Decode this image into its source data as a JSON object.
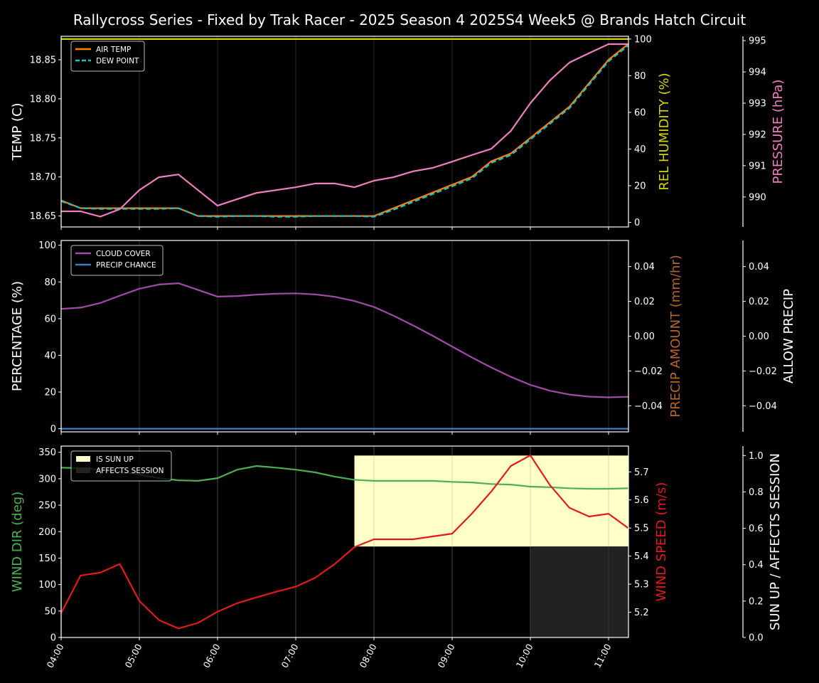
{
  "chart_data": [
    {
      "type": "line",
      "title": "Rallycross Series - Fixed by Trak Racer - 2025 Season 4 2025S4 Week5 @ Brands Hatch Circuit",
      "x": [
        "04:00",
        "04:15",
        "04:30",
        "04:45",
        "05:00",
        "05:15",
        "05:30",
        "05:45",
        "06:00",
        "06:15",
        "06:30",
        "06:45",
        "07:00",
        "07:15",
        "07:30",
        "07:45",
        "08:00",
        "08:15",
        "08:30",
        "08:45",
        "09:00",
        "09:15",
        "09:30",
        "09:45",
        "10:00",
        "10:15",
        "10:30",
        "10:45",
        "11:00",
        "11:15"
      ],
      "x_tick_labels": [
        "04:00",
        "05:00",
        "06:00",
        "07:00",
        "08:00",
        "09:00",
        "10:00",
        "11:00"
      ],
      "grid": "vertical at each hour",
      "panels": [
        {
          "id": "temp",
          "legend_placement": "top-left",
          "axes": {
            "left": {
              "label": "TEMP (C)",
              "range": [
                18.636,
                18.88
              ],
              "ticks": [
                "18.65",
                "18.70",
                "18.75",
                "18.80",
                "18.85"
              ],
              "color": "#ffffff"
            },
            "right": {
              "label": "REL HUMIDITY (%)",
              "range": [
                -2.5,
                101.5
              ],
              "ticks": [
                "0",
                "20",
                "40",
                "60",
                "80",
                "100"
              ],
              "color": "#d4d400"
            },
            "right2": {
              "label": "PRESSURE (hPa)",
              "range": [
                989.04,
                995.14
              ],
              "ticks": [
                "990",
                "991",
                "992",
                "993",
                "994",
                "995"
              ],
              "color": "#f07fbf"
            }
          },
          "series": [
            {
              "name": "AIR TEMP",
              "axis": "left",
              "color": "#ff7f0e",
              "dash": false,
              "legend": true,
              "values": [
                18.67,
                18.66,
                18.66,
                18.66,
                18.66,
                18.66,
                18.66,
                18.65,
                18.65,
                18.65,
                18.65,
                18.65,
                18.65,
                18.65,
                18.65,
                18.65,
                18.65,
                18.66,
                18.67,
                18.68,
                18.69,
                18.7,
                18.72,
                18.73,
                18.75,
                18.77,
                18.79,
                18.82,
                18.85,
                18.87
              ]
            },
            {
              "name": "DEW POINT",
              "axis": "left",
              "color": "#17c3c3",
              "dash": true,
              "legend": true,
              "values": [
                18.669,
                18.66,
                18.659,
                18.659,
                18.659,
                18.659,
                18.66,
                18.65,
                18.649,
                18.65,
                18.65,
                18.649,
                18.649,
                18.65,
                18.65,
                18.65,
                18.649,
                18.658,
                18.668,
                18.678,
                18.688,
                18.698,
                18.718,
                18.728,
                18.748,
                18.768,
                18.788,
                18.818,
                18.848,
                18.868
              ]
            },
            {
              "name": "REL HUMIDITY",
              "axis": "right",
              "color": "#d4d400",
              "dash": false,
              "legend": false,
              "values": [
                100,
                100,
                100,
                100,
                100,
                100,
                100,
                100,
                100,
                100,
                100,
                100,
                100,
                100,
                100,
                100,
                100,
                100,
                100,
                100,
                100,
                100,
                100,
                100,
                100,
                100,
                100,
                100,
                100,
                100
              ]
            },
            {
              "name": "PRESSURE",
              "axis": "right2",
              "color": "#f07fbf",
              "dash": false,
              "legend": false,
              "values": [
                989.54,
                989.54,
                989.37,
                989.61,
                990.22,
                990.63,
                990.72,
                990.22,
                989.72,
                989.93,
                990.13,
                990.22,
                990.31,
                990.43,
                990.43,
                990.31,
                990.52,
                990.63,
                990.82,
                990.93,
                991.13,
                991.34,
                991.54,
                992.11,
                993.0,
                993.73,
                994.3,
                994.6,
                994.89,
                994.89
              ]
            }
          ]
        },
        {
          "id": "precip",
          "legend_placement": "top-left",
          "axes": {
            "left": {
              "label": "PERCENTAGE (%)",
              "range": [
                -1.7,
                102.6
              ],
              "ticks": [
                "0",
                "20",
                "40",
                "60",
                "80",
                "100"
              ],
              "color": "#ffffff"
            },
            "right": {
              "label": "PRECIP AMOUNT (mm/hr)",
              "range": [
                -0.055,
                0.055
              ],
              "ticks": [
                "−0.04",
                "−0.02",
                "0.00",
                "0.02",
                "0.04"
              ],
              "color": "#b5652a"
            },
            "right2": {
              "label": "ALLOW PRECIP",
              "range": [
                -0.055,
                0.055
              ],
              "ticks": [
                "−0.04",
                "−0.02",
                "0.00",
                "0.02",
                "0.04"
              ],
              "color": "#ffffff"
            }
          },
          "series": [
            {
              "name": "CLOUD COVER",
              "axis": "left",
              "color": "#a04ca8",
              "dash": false,
              "legend": true,
              "values": [
                65.3,
                66,
                68.5,
                72.5,
                76.3,
                78.6,
                79.3,
                75.7,
                72,
                72.3,
                73.1,
                73.6,
                73.8,
                73.2,
                71.9,
                69.6,
                66.4,
                61.6,
                56.3,
                50.7,
                44.8,
                38.9,
                33.4,
                28.3,
                23.9,
                20.7,
                18.6,
                17.5,
                17.1,
                17.4
              ]
            },
            {
              "name": "PRECIP CHANCE",
              "axis": "left",
              "color": "#3a7fc0",
              "dash": false,
              "legend": true,
              "values": [
                0,
                0,
                0,
                0,
                0,
                0,
                0,
                0,
                0,
                0,
                0,
                0,
                0,
                0,
                0,
                0,
                0,
                0,
                0,
                0,
                0,
                0,
                0,
                0,
                0,
                0,
                0,
                0,
                0,
                0
              ]
            }
          ]
        },
        {
          "id": "wind",
          "legend_placement": "top-left",
          "axes": {
            "left": {
              "label": "WIND DIR (deg)",
              "range": [
                0,
                361.7
              ],
              "ticks": [
                "0",
                "50",
                "100",
                "150",
                "200",
                "250",
                "300",
                "350"
              ],
              "color": "#4caf50"
            },
            "right": {
              "label": "WIND SPEED (m/s)",
              "range": [
                5.11,
                5.792
              ],
              "ticks": [
                "5.2",
                "5.3",
                "5.4",
                "5.5",
                "5.6",
                "5.7"
              ],
              "color": "#e31a1c"
            },
            "right2": {
              "label": "SUN UP / AFFECTS SESSION",
              "range": [
                0,
                1.052
              ],
              "ticks": [
                "0.0",
                "0.2",
                "0.4",
                "0.6",
                "0.8",
                "1.0"
              ],
              "color": "#ffffff"
            }
          },
          "bands": [
            {
              "name": "IS SUN UP",
              "axis": "right2",
              "color": "#ffffc8",
              "start": "07:45",
              "end": "11:15",
              "low": 0.5,
              "high": 1.0
            },
            {
              "name": "AFFECTS SESSION",
              "axis": "right2",
              "color": "#222222",
              "start": "10:00",
              "end": "11:15",
              "low": 0.0,
              "high": 0.5
            }
          ],
          "series": [
            {
              "name": "WIND DIR",
              "axis": "left",
              "color": "#4caf50",
              "dash": false,
              "legend": false,
              "values": [
                321,
                320,
                317,
                313,
                308,
                301,
                297,
                296,
                301,
                317,
                324,
                321,
                317,
                312,
                304,
                298,
                296,
                296,
                296,
                296,
                294,
                293,
                290,
                289,
                285,
                284,
                282,
                281,
                281,
                282
              ]
            },
            {
              "name": "WIND SPEED",
              "axis": "right",
              "color": "#e31a1c",
              "dash": false,
              "legend": false,
              "values": [
                5.197,
                5.331,
                5.341,
                5.372,
                5.24,
                5.172,
                5.142,
                5.162,
                5.202,
                5.232,
                5.253,
                5.273,
                5.291,
                5.323,
                5.372,
                5.432,
                5.46,
                5.46,
                5.46,
                5.47,
                5.48,
                5.551,
                5.63,
                5.721,
                5.759,
                5.653,
                5.572,
                5.541,
                5.551,
                5.5
              ]
            }
          ]
        }
      ]
    }
  ]
}
